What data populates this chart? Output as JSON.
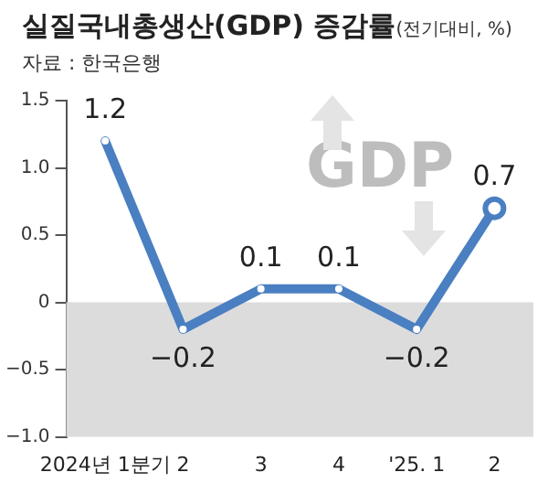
{
  "chart_data": {
    "type": "line",
    "title": "실질국내총생산(GDP) 증감률",
    "subtitle": "(전기대비, %)",
    "annotations": [
      "자료 : 한국은행",
      "GDP"
    ],
    "categories": [
      "2024년 1분기",
      "2",
      "3",
      "4",
      "'25. 1",
      "2"
    ],
    "series": [
      {
        "color": "#4a7fc1",
        "values": [
          1.2,
          -0.2,
          0.1,
          0.1,
          -0.2,
          0.7
        ]
      }
    ],
    "ylim": [
      -1.0,
      1.5
    ],
    "yticks": [
      {
        "value": -1.0,
        "label": "−1.0"
      },
      {
        "value": -0.5,
        "label": "−0.5"
      },
      0,
      {
        "value": 0.5,
        "label": "0.5"
      },
      {
        "value": 1.0,
        "label": "1.0"
      },
      {
        "value": 1.5,
        "label": "1.5"
      }
    ],
    "bands": [
      {
        "axis": "y",
        "from": -1.0,
        "to": 0,
        "color": "#dcdcdc"
      }
    ],
    "data_labels": true,
    "marker": "circle",
    "line_style": "solid",
    "grid": false,
    "legend": false
  }
}
